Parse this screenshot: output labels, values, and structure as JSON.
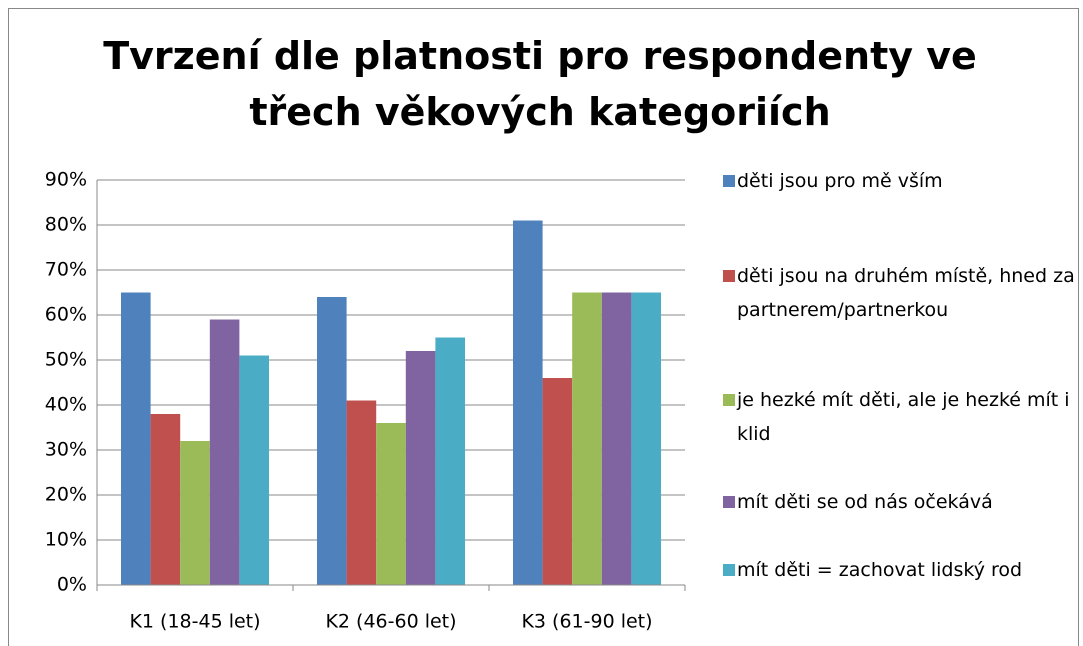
{
  "chart_data": {
    "type": "bar",
    "title": "Tvrzení dle platnosti pro respondenty ve třech věkových kategoriích",
    "categories": [
      "K1 (18-45 let)",
      "K2 (46-60 let)",
      "K3 (61-90 let)"
    ],
    "series": [
      {
        "name": "děti jsou pro mě vším",
        "color": "#4f81bd",
        "values": [
          65,
          64,
          81
        ]
      },
      {
        "name": "děti jsou na druhém místě, hned za partnerem/partnerkou",
        "color": "#c0504d",
        "values": [
          38,
          41,
          46
        ]
      },
      {
        "name": "je hezké mít děti, ale je hezké mít i klid",
        "color": "#9bbb59",
        "values": [
          32,
          36,
          65
        ]
      },
      {
        "name": "mít děti se od nás očekává",
        "color": "#8064a2",
        "values": [
          59,
          52,
          65
        ]
      },
      {
        "name": "mít děti = zachovat lidský rod",
        "color": "#4bacc6",
        "values": [
          51,
          55,
          65
        ]
      }
    ],
    "ylim": [
      0,
      90
    ],
    "yticks": [
      {
        "value": 0,
        "label": "0%"
      },
      {
        "value": 10,
        "label": "10%"
      },
      {
        "value": 20,
        "label": "20%"
      },
      {
        "value": 30,
        "label": "30%"
      },
      {
        "value": 40,
        "label": "40%"
      },
      {
        "value": 50,
        "label": "50%"
      },
      {
        "value": 60,
        "label": "60%"
      },
      {
        "value": 70,
        "label": "70%"
      },
      {
        "value": 80,
        "label": "80%"
      },
      {
        "value": 90,
        "label": "90%"
      }
    ],
    "grid": true,
    "legend": "right"
  }
}
